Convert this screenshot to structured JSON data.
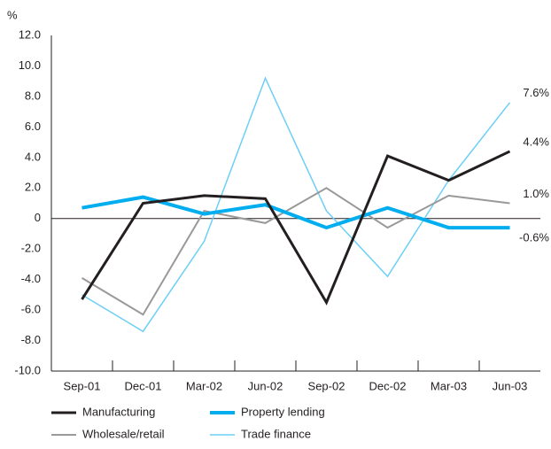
{
  "chart_data": {
    "type": "line",
    "y_unit_label": "%",
    "categories": [
      "Sep-01",
      "Dec-01",
      "Mar-02",
      "Jun-02",
      "Sep-02",
      "Dec-02",
      "Mar-03",
      "Jun-03"
    ],
    "series": [
      {
        "name": "Manufacturing",
        "color": "#231f20",
        "width": 3,
        "values": [
          -5.3,
          1.0,
          1.5,
          1.3,
          -5.5,
          4.1,
          2.5,
          4.4
        ],
        "value_labels": [
          null,
          null,
          null,
          null,
          null,
          null,
          null,
          "4.4%"
        ]
      },
      {
        "name": "Property lending",
        "color": "#00aeef",
        "width": 4,
        "values": [
          0.7,
          1.4,
          0.3,
          0.9,
          -0.6,
          0.7,
          -0.6,
          -0.6
        ],
        "value_labels": [
          null,
          null,
          null,
          null,
          null,
          null,
          null,
          "-0.6%"
        ]
      },
      {
        "name": "Wholesale/retail",
        "color": "#999999",
        "width": 2,
        "values": [
          -3.9,
          -6.3,
          0.5,
          -0.3,
          2.0,
          -0.6,
          1.5,
          1.0
        ],
        "value_labels": [
          null,
          null,
          null,
          null,
          null,
          null,
          null,
          "1.0%"
        ]
      },
      {
        "name": "Trade finance",
        "color": "#6dcff6",
        "width": 1.5,
        "values": [
          -5.0,
          -7.4,
          -1.5,
          9.2,
          0.5,
          -3.8,
          2.5,
          7.6
        ],
        "value_labels": [
          null,
          null,
          null,
          null,
          null,
          null,
          null,
          "7.6%"
        ]
      }
    ],
    "ylim": [
      -10,
      12
    ],
    "yticks": [
      {
        "value": -10,
        "label": "-10.0"
      },
      {
        "value": -8,
        "label": "-8.0"
      },
      {
        "value": -6,
        "label": "-6.0"
      },
      {
        "value": -4,
        "label": "-4.0"
      },
      {
        "value": -2,
        "label": "-2.0"
      },
      0,
      {
        "value": 2,
        "label": "2.0"
      },
      {
        "value": 4,
        "label": "4.0"
      },
      {
        "value": 6,
        "label": "6.0"
      },
      {
        "value": 8,
        "label": "8.0"
      },
      {
        "value": 10,
        "label": "10.0"
      },
      {
        "value": 12,
        "label": "12.0"
      }
    ],
    "grid": false
  }
}
